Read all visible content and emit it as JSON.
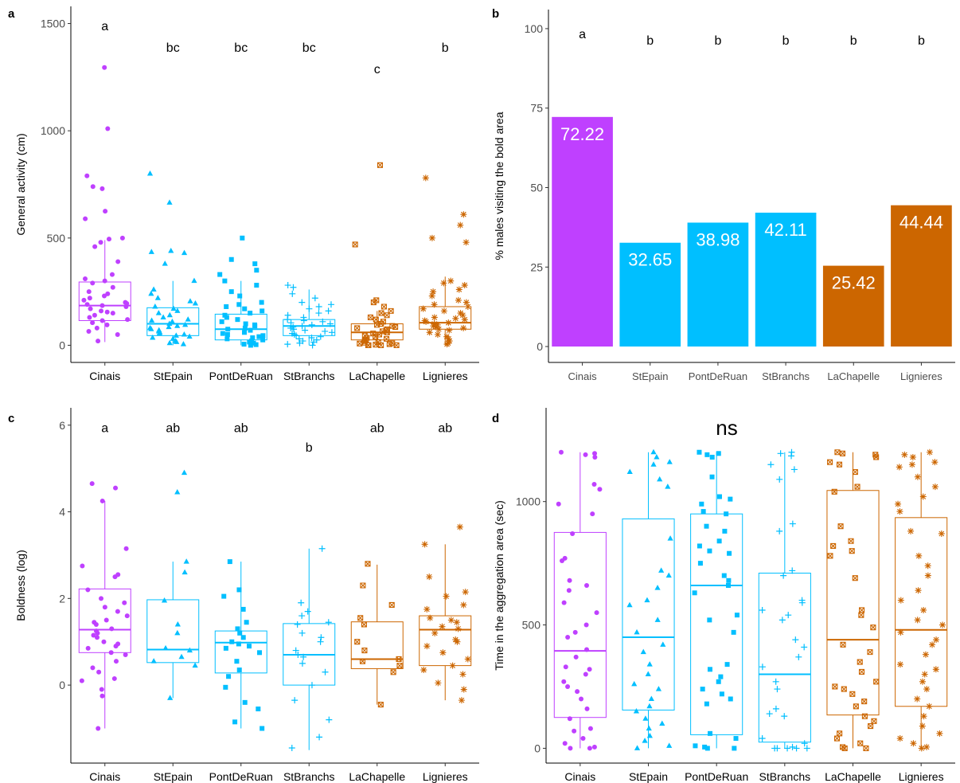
{
  "colors": {
    "Cinais": "#bf40ff",
    "StEpain": "#00bfff",
    "PontDeRuan": "#00bfff",
    "StBranchs": "#00bfff",
    "LaChapelle": "#cc6600",
    "Lignieres": "#cc6600"
  },
  "chart_data": [
    {
      "panel": "a",
      "type": "box",
      "ylabel": "General activity (cm)",
      "categories": [
        "Cinais",
        "StEpain",
        "PontDeRuan",
        "StBranchs",
        "LaChapelle",
        "Lignieres"
      ],
      "ylim": [
        -80,
        1580
      ],
      "yticks": [
        0,
        500,
        1000,
        1500
      ],
      "letters": [
        "a",
        "bc",
        "bc",
        "bc",
        "c",
        "b"
      ],
      "letter_y": [
        1490,
        1390,
        1390,
        1390,
        1290,
        1390
      ],
      "boxes": [
        {
          "q1": 115,
          "med": 185,
          "q3": 295,
          "lo": 15,
          "hi": 490
        },
        {
          "q1": 45,
          "med": 100,
          "q3": 175,
          "lo": 0,
          "hi": 300
        },
        {
          "q1": 25,
          "med": 75,
          "q3": 145,
          "lo": 0,
          "hi": 300
        },
        {
          "q1": 45,
          "med": 90,
          "q3": 120,
          "lo": 0,
          "hi": 260
        },
        {
          "q1": 25,
          "med": 60,
          "q3": 100,
          "lo": 0,
          "hi": 160
        },
        {
          "q1": 75,
          "med": 105,
          "q3": 180,
          "lo": 0,
          "hi": 320
        }
      ],
      "points": [
        [
          1295,
          1010,
          790,
          740,
          730,
          625,
          590,
          500,
          495,
          480,
          460,
          390,
          330,
          310,
          300,
          290,
          270,
          250,
          240,
          230,
          220,
          210,
          200,
          195,
          190,
          185,
          180,
          170,
          160,
          155,
          150,
          140,
          130,
          120,
          115,
          105,
          95,
          80,
          65,
          50,
          20
        ],
        [
          800,
          665,
          440,
          435,
          430,
          380,
          300,
          260,
          240,
          220,
          205,
          195,
          180,
          170,
          160,
          150,
          140,
          130,
          120,
          115,
          110,
          100,
          95,
          90,
          85,
          80,
          75,
          70,
          65,
          60,
          55,
          50,
          45,
          40,
          35,
          30,
          20,
          15,
          10,
          5
        ],
        [
          500,
          400,
          380,
          350,
          330,
          300,
          280,
          250,
          230,
          200,
          190,
          180,
          170,
          160,
          150,
          140,
          130,
          120,
          110,
          100,
          95,
          90,
          80,
          75,
          70,
          60,
          55,
          50,
          45,
          40,
          35,
          30,
          25,
          20,
          15,
          10,
          5,
          3,
          0
        ],
        [
          280,
          270,
          240,
          220,
          200,
          190,
          180,
          170,
          160,
          150,
          140,
          130,
          120,
          115,
          110,
          105,
          100,
          95,
          90,
          85,
          80,
          75,
          70,
          65,
          60,
          55,
          50,
          45,
          40,
          35,
          30,
          25,
          20,
          15,
          10,
          5,
          0
        ],
        [
          840,
          470,
          210,
          200,
          180,
          160,
          150,
          140,
          130,
          120,
          110,
          100,
          95,
          90,
          85,
          80,
          75,
          70,
          65,
          60,
          55,
          50,
          45,
          40,
          35,
          30,
          25,
          20,
          15,
          12,
          10,
          8,
          5,
          3,
          0,
          0,
          0,
          0
        ],
        [
          780,
          610,
          560,
          500,
          480,
          300,
          290,
          280,
          260,
          250,
          230,
          210,
          200,
          190,
          180,
          170,
          160,
          150,
          140,
          130,
          125,
          120,
          115,
          110,
          105,
          100,
          95,
          90,
          85,
          80,
          75,
          70,
          60,
          50,
          40,
          30,
          20,
          10,
          5
        ]
      ]
    },
    {
      "panel": "b",
      "type": "bar",
      "ylabel": "% males visiting the bold area",
      "categories": [
        "Cinais",
        "StEpain",
        "PontDeRuan",
        "StBranchs",
        "LaChapelle",
        "Lignieres"
      ],
      "values": [
        72.22,
        32.65,
        38.98,
        42.11,
        25.42,
        44.44
      ],
      "value_labels": [
        "72.22",
        "32.65",
        "38.98",
        "42.11",
        "25.42",
        "44.44"
      ],
      "ylim": [
        -5,
        106
      ],
      "yticks": [
        0,
        25,
        50,
        75,
        100
      ],
      "letters": [
        "a",
        "b",
        "b",
        "b",
        "b",
        "b"
      ],
      "letter_y": [
        98.5,
        96.5,
        96.5,
        96.5,
        96.5,
        96.5
      ]
    },
    {
      "panel": "c",
      "type": "box",
      "ylabel": "Boldness (log)",
      "categories": [
        "Cinais",
        "StEpain",
        "PontDeRuan",
        "StBranchs",
        "LaChapelle",
        "Lignieres"
      ],
      "ylim": [
        -1.8,
        6.4
      ],
      "yticks": [
        0,
        2,
        4,
        6
      ],
      "letters": [
        "a",
        "ab",
        "ab",
        "b",
        "ab",
        "ab"
      ],
      "letter_y": [
        5.95,
        5.95,
        5.95,
        5.5,
        5.95,
        5.95
      ],
      "boxes": [
        {
          "q1": 0.75,
          "med": 1.28,
          "q3": 2.22,
          "lo": -1.0,
          "hi": 4.25
        },
        {
          "q1": 0.52,
          "med": 0.82,
          "q3": 1.97,
          "lo": -0.3,
          "hi": 2.85
        },
        {
          "q1": 0.28,
          "med": 0.98,
          "q3": 1.25,
          "lo": -1.0,
          "hi": 2.85
        },
        {
          "q1": 0.0,
          "med": 0.7,
          "q3": 1.42,
          "lo": -1.5,
          "hi": 3.15
        },
        {
          "q1": 0.38,
          "med": 0.6,
          "q3": 1.46,
          "lo": -0.45,
          "hi": 2.78
        },
        {
          "q1": 0.45,
          "med": 1.28,
          "q3": 1.6,
          "lo": -0.35,
          "hi": 3.25
        }
      ],
      "points": [
        [
          4.65,
          4.55,
          4.25,
          3.15,
          2.75,
          2.55,
          2.5,
          2.2,
          2.0,
          1.9,
          1.8,
          1.7,
          1.6,
          1.5,
          1.45,
          1.4,
          1.3,
          1.25,
          1.2,
          1.15,
          1.1,
          1.0,
          0.95,
          0.9,
          0.85,
          0.75,
          0.7,
          0.55,
          0.4,
          0.3,
          0.15,
          0.1,
          -0.1,
          -0.25,
          -1.0
        ],
        [
          4.9,
          4.45,
          2.85,
          2.6,
          1.95,
          1.4,
          1.2,
          0.85,
          0.8,
          0.65,
          0.55,
          0.45,
          -0.3
        ],
        [
          2.85,
          2.2,
          2.05,
          1.75,
          1.45,
          1.3,
          1.2,
          1.1,
          1.0,
          0.95,
          0.9,
          0.85,
          0.75,
          0.55,
          0.35,
          0.2,
          -0.05,
          -0.4,
          -0.55,
          -0.85,
          -1.0
        ],
        [
          3.15,
          1.9,
          1.7,
          1.6,
          1.45,
          1.4,
          1.2,
          1.1,
          1.0,
          0.8,
          0.7,
          0.65,
          0.5,
          0.3,
          0.0,
          -0.35,
          -0.8,
          -1.2,
          -1.45
        ],
        [
          2.8,
          2.3,
          1.85,
          1.55,
          1.4,
          1.0,
          0.8,
          0.6,
          0.55,
          0.45,
          0.3,
          -0.45
        ],
        [
          3.65,
          3.25,
          2.5,
          2.15,
          2.05,
          1.85,
          1.75,
          1.55,
          1.5,
          1.45,
          1.35,
          1.3,
          1.2,
          1.05,
          1.0,
          0.9,
          0.75,
          0.6,
          0.45,
          0.35,
          0.25,
          0.05,
          -0.1,
          -0.35
        ]
      ]
    },
    {
      "panel": "d",
      "type": "box",
      "ylabel": "Time in the aggregation area (sec)",
      "title": "ns",
      "categories": [
        "Cinais",
        "StEpain",
        "PontDeRuan",
        "StBranchs",
        "LaChapelle",
        "Lignieres"
      ],
      "ylim": [
        -60,
        1380
      ],
      "yticks": [
        0,
        500,
        1000
      ],
      "boxes": [
        {
          "q1": 125,
          "med": 395,
          "q3": 875,
          "lo": 0,
          "hi": 1200
        },
        {
          "q1": 155,
          "med": 450,
          "q3": 930,
          "lo": 0,
          "hi": 1200
        },
        {
          "q1": 55,
          "med": 660,
          "q3": 950,
          "lo": 0,
          "hi": 1200
        },
        {
          "q1": 25,
          "med": 300,
          "q3": 710,
          "lo": 0,
          "hi": 1200
        },
        {
          "q1": 135,
          "med": 440,
          "q3": 1045,
          "lo": 0,
          "hi": 1200
        },
        {
          "q1": 170,
          "med": 480,
          "q3": 935,
          "lo": 0,
          "hi": 1200
        }
      ],
      "points": [
        [
          1200,
          1195,
          1190,
          1180,
          1070,
          1050,
          990,
          950,
          870,
          770,
          760,
          680,
          660,
          640,
          590,
          550,
          500,
          470,
          450,
          400,
          370,
          330,
          320,
          300,
          270,
          250,
          230,
          200,
          160,
          120,
          80,
          70,
          40,
          20,
          5,
          0,
          0
        ],
        [
          1200,
          1180,
          1160,
          1150,
          1120,
          1090,
          1060,
          850,
          720,
          700,
          650,
          600,
          580,
          520,
          470,
          420,
          390,
          340,
          300,
          260,
          240,
          200,
          170,
          150,
          120,
          100,
          80,
          50,
          30,
          10,
          0
        ],
        [
          1200,
          1195,
          1190,
          1180,
          1100,
          1020,
          1010,
          990,
          960,
          950,
          900,
          880,
          840,
          820,
          800,
          790,
          750,
          700,
          680,
          660,
          630,
          540,
          520,
          470,
          340,
          320,
          290,
          270,
          240,
          220,
          200,
          180,
          60,
          40,
          10,
          5,
          0,
          0
        ],
        [
          1200,
          1195,
          1185,
          1150,
          1130,
          1090,
          910,
          880,
          720,
          700,
          600,
          590,
          560,
          540,
          520,
          440,
          410,
          370,
          330,
          270,
          240,
          160,
          140,
          130,
          40,
          20,
          5,
          0,
          0,
          0,
          0,
          0
        ],
        [
          1200,
          1195,
          1190,
          1180,
          1160,
          1150,
          1120,
          1060,
          1040,
          900,
          840,
          820,
          800,
          780,
          690,
          560,
          540,
          490,
          420,
          390,
          350,
          310,
          270,
          250,
          240,
          220,
          190,
          170,
          130,
          110,
          90,
          60,
          40,
          20,
          5,
          0,
          0
        ],
        [
          1200,
          1190,
          1180,
          1160,
          1150,
          1140,
          1100,
          1060,
          1020,
          990,
          960,
          880,
          870,
          780,
          740,
          700,
          640,
          600,
          560,
          520,
          500,
          470,
          440,
          420,
          380,
          340,
          320,
          300,
          270,
          240,
          200,
          170,
          130,
          90,
          60,
          40,
          20,
          5,
          0
        ]
      ]
    }
  ]
}
